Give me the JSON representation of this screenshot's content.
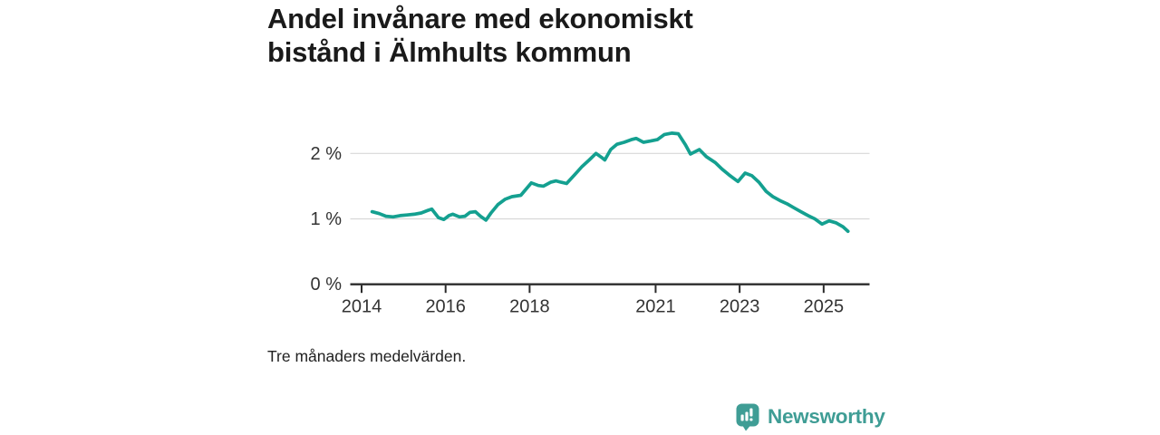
{
  "header": {
    "title_lines": [
      "Andel invånare med ekonomiskt",
      "bistånd i Älmhults kommun"
    ]
  },
  "footer": {
    "note": "Tre månaders medelvärden.",
    "logo_text": "Newsworthy",
    "logo_icon": "bar-chart-speech-bubble-icon",
    "logo_color": "#3f9d95"
  },
  "chart_data": {
    "type": "line",
    "title": "Andel invånare med ekonomiskt bistånd i Älmhults kommun",
    "subtitle_note": "Tre månaders medelvärden.",
    "unit": "%",
    "grid": "horizontal",
    "legend": "none",
    "line_color": "#14a090",
    "axis_color": "#2b2b2b",
    "grid_color": "#d8d8d8",
    "label_color": "#333333",
    "xlim": [
      2013.7,
      2025.9
    ],
    "ylim": [
      0,
      2.55
    ],
    "y_ticks": [
      {
        "value": 0,
        "label": "0 %"
      },
      {
        "value": 1,
        "label": "1 %"
      },
      {
        "value": 2,
        "label": "2 %"
      }
    ],
    "x_ticks": [
      {
        "value": 2014,
        "label": "2014"
      },
      {
        "value": 2016,
        "label": "2016"
      },
      {
        "value": 2018,
        "label": "2018"
      },
      {
        "value": 2021,
        "label": "2021"
      },
      {
        "value": 2023,
        "label": "2023"
      },
      {
        "value": 2025,
        "label": "2025"
      }
    ],
    "series": [
      {
        "name": "Andel invånare med ekonomiskt bistånd",
        "points": [
          [
            2014.25,
            1.11
          ],
          [
            2014.42,
            1.08
          ],
          [
            2014.58,
            1.04
          ],
          [
            2014.75,
            1.03
          ],
          [
            2014.92,
            1.05
          ],
          [
            2015.08,
            1.06
          ],
          [
            2015.25,
            1.07
          ],
          [
            2015.42,
            1.09
          ],
          [
            2015.58,
            1.13
          ],
          [
            2015.67,
            1.15
          ],
          [
            2015.83,
            1.02
          ],
          [
            2015.96,
            0.99
          ],
          [
            2016.08,
            1.05
          ],
          [
            2016.17,
            1.07
          ],
          [
            2016.33,
            1.03
          ],
          [
            2016.46,
            1.04
          ],
          [
            2016.58,
            1.1
          ],
          [
            2016.71,
            1.11
          ],
          [
            2016.83,
            1.04
          ],
          [
            2016.96,
            0.98
          ],
          [
            2017.08,
            1.09
          ],
          [
            2017.25,
            1.22
          ],
          [
            2017.42,
            1.3
          ],
          [
            2017.58,
            1.34
          ],
          [
            2017.79,
            1.36
          ],
          [
            2018.04,
            1.55
          ],
          [
            2018.21,
            1.51
          ],
          [
            2018.33,
            1.5
          ],
          [
            2018.5,
            1.56
          ],
          [
            2018.63,
            1.58
          ],
          [
            2018.75,
            1.56
          ],
          [
            2018.88,
            1.54
          ],
          [
            2019.08,
            1.68
          ],
          [
            2019.25,
            1.8
          ],
          [
            2019.42,
            1.9
          ],
          [
            2019.58,
            2.0
          ],
          [
            2019.71,
            1.94
          ],
          [
            2019.79,
            1.9
          ],
          [
            2019.93,
            2.06
          ],
          [
            2020.08,
            2.14
          ],
          [
            2020.25,
            2.17
          ],
          [
            2020.42,
            2.21
          ],
          [
            2020.54,
            2.23
          ],
          [
            2020.71,
            2.17
          ],
          [
            2020.88,
            2.19
          ],
          [
            2021.04,
            2.21
          ],
          [
            2021.21,
            2.29
          ],
          [
            2021.38,
            2.31
          ],
          [
            2021.54,
            2.3
          ],
          [
            2021.71,
            2.13
          ],
          [
            2021.83,
            1.99
          ],
          [
            2022.04,
            2.06
          ],
          [
            2022.21,
            1.95
          ],
          [
            2022.42,
            1.86
          ],
          [
            2022.58,
            1.76
          ],
          [
            2022.75,
            1.67
          ],
          [
            2022.96,
            1.57
          ],
          [
            2023.13,
            1.7
          ],
          [
            2023.29,
            1.66
          ],
          [
            2023.46,
            1.56
          ],
          [
            2023.63,
            1.42
          ],
          [
            2023.79,
            1.34
          ],
          [
            2023.96,
            1.28
          ],
          [
            2024.13,
            1.23
          ],
          [
            2024.29,
            1.17
          ],
          [
            2024.46,
            1.11
          ],
          [
            2024.63,
            1.05
          ],
          [
            2024.79,
            1.0
          ],
          [
            2024.96,
            0.92
          ],
          [
            2025.13,
            0.97
          ],
          [
            2025.29,
            0.94
          ],
          [
            2025.46,
            0.88
          ],
          [
            2025.58,
            0.81
          ]
        ]
      }
    ]
  }
}
